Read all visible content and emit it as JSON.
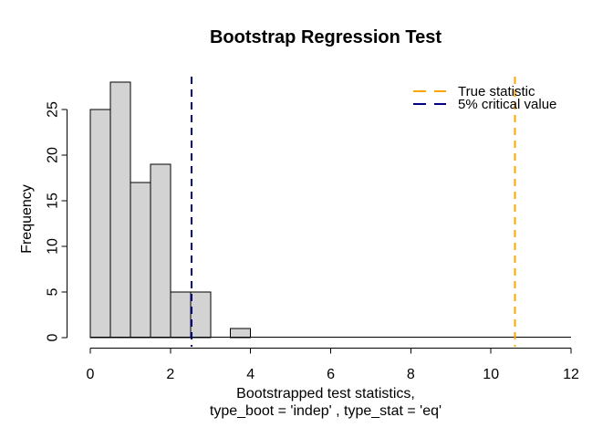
{
  "chart_data": {
    "type": "bar",
    "subtype": "histogram",
    "title": "Bootstrap Regression Test",
    "ylabel": "Frequency",
    "xlabel_line1": "Bootstrapped test statistics,",
    "xlabel_line2": "type_boot = 'indep' , type_stat = 'eq'",
    "bins": {
      "start": 0,
      "width": 0.5,
      "counts": [
        25,
        28,
        17,
        19,
        5,
        5,
        0,
        1
      ]
    },
    "x_ticks": [
      0,
      2,
      4,
      6,
      8,
      10,
      12
    ],
    "y_ticks": [
      0,
      5,
      10,
      15,
      20,
      25
    ],
    "xlim": [
      0,
      12
    ],
    "ylim": [
      0,
      29
    ],
    "grid": false,
    "bar_fill": "#D3D3D3",
    "bar_stroke": "#000000",
    "axis_color": "#000000",
    "vlines": [
      {
        "name": "true-statistic-line",
        "x": 10.6,
        "color": "#FFA500",
        "style": "dashed"
      },
      {
        "name": "critical-value-line",
        "x": 2.53,
        "color": "#000080",
        "style": "dashed"
      }
    ],
    "legend": {
      "position": "topright",
      "items": [
        {
          "label": "True statistic",
          "color": "#FFA500"
        },
        {
          "label": "5% critical value",
          "color": "#000080"
        }
      ]
    }
  }
}
